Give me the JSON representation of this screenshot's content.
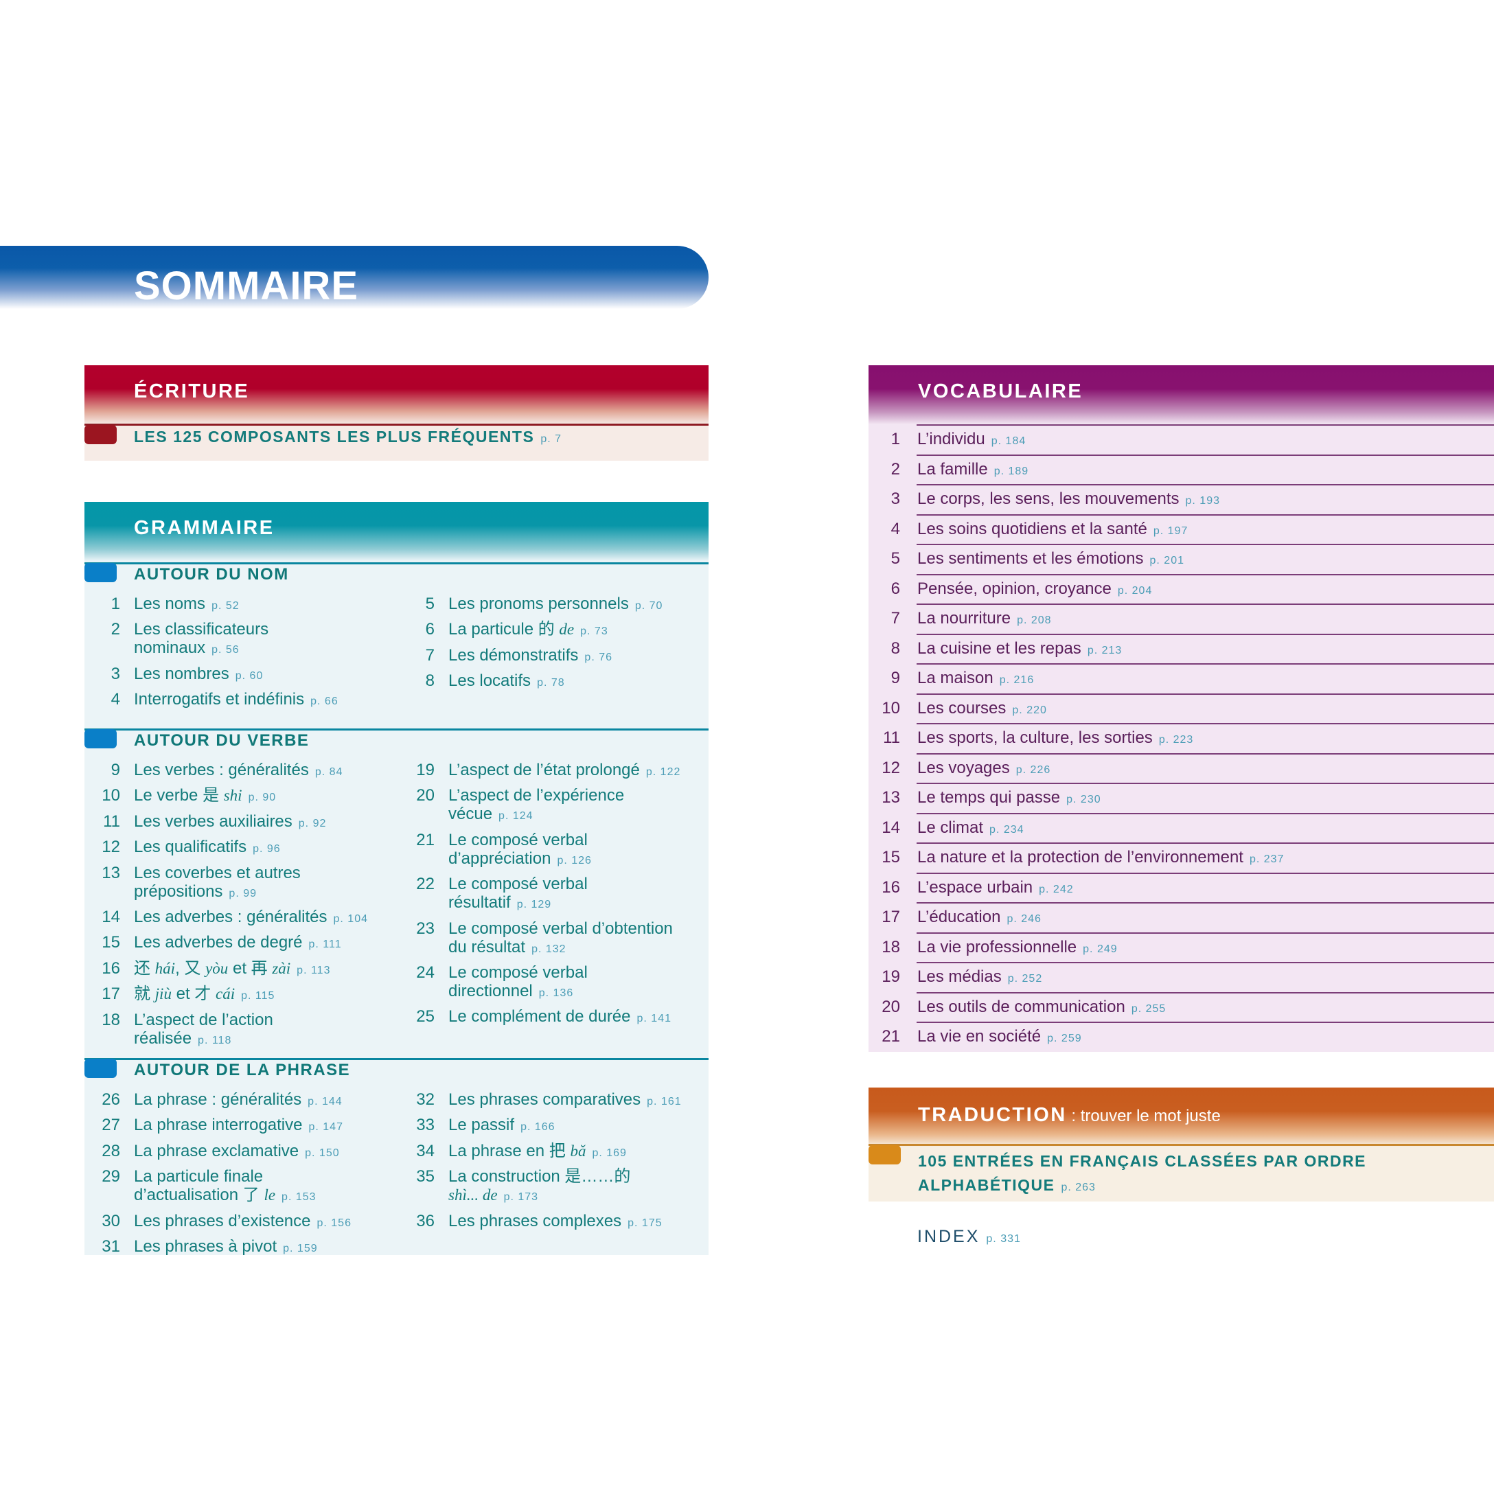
{
  "title": "SOMMAIRE",
  "colors": {
    "sommaire": "#0a58a8",
    "ecriture": "#b0002a",
    "grammaire": "#0497a8",
    "vocabulaire": "#87106f",
    "traduction": "#c85a1c",
    "text": "#137b7b",
    "page_ref": "#4c9db6"
  },
  "ecriture": {
    "title": "ÉCRITURE",
    "item": {
      "label": "LES 125 COMPOSANTS LES PLUS FRÉQUENTS",
      "page": "p. 7"
    }
  },
  "grammaire": {
    "title": "GRAMMAIRE",
    "sections": [
      {
        "title": "AUTOUR DU NOM",
        "left": [
          {
            "num": "1",
            "parts": [
              "Les noms"
            ],
            "page": "p. 52"
          },
          {
            "num": "2",
            "parts": [
              "Les classificateurs\nnominaux"
            ],
            "page": "p. 56"
          },
          {
            "num": "3",
            "parts": [
              "Les nombres"
            ],
            "page": "p. 60"
          },
          {
            "num": "4",
            "parts": [
              "Interrogatifs et indéfinis"
            ],
            "page": "p. 66"
          }
        ],
        "right": [
          {
            "num": "5",
            "parts": [
              "Les pronoms personnels"
            ],
            "page": "p. 70"
          },
          {
            "num": "6",
            "parts": [
              "La particule 的 ",
              {
                "i": "de"
              }
            ],
            "page": "p. 73"
          },
          {
            "num": "7",
            "parts": [
              "Les démonstratifs"
            ],
            "page": "p. 76"
          },
          {
            "num": "8",
            "parts": [
              "Les locatifs"
            ],
            "page": "p. 78"
          }
        ]
      },
      {
        "title": "AUTOUR DU VERBE",
        "left": [
          {
            "num": "9",
            "parts": [
              "Les verbes : généralités"
            ],
            "page": "p. 84"
          },
          {
            "num": "10",
            "parts": [
              "Le verbe 是 ",
              {
                "i": "shi"
              }
            ],
            "page": "p. 90"
          },
          {
            "num": "11",
            "parts": [
              "Les verbes auxiliaires"
            ],
            "page": "p. 92"
          },
          {
            "num": "12",
            "parts": [
              "Les qualificatifs"
            ],
            "page": "p. 96"
          },
          {
            "num": "13",
            "parts": [
              "Les coverbes et autres\nprépositions"
            ],
            "page": "p. 99"
          },
          {
            "num": "14",
            "parts": [
              "Les adverbes : généralités"
            ],
            "page": "p. 104"
          },
          {
            "num": "15",
            "parts": [
              "Les adverbes de degré"
            ],
            "page": "p. 111"
          },
          {
            "num": "16",
            "parts": [
              "还 ",
              {
                "i": "hái"
              },
              ", 又 ",
              {
                "i": "yòu"
              },
              " et 再 ",
              {
                "i": "zài"
              }
            ],
            "page": "p. 113"
          },
          {
            "num": "17",
            "parts": [
              "就 ",
              {
                "i": "jiù"
              },
              " et 才 ",
              {
                "i": "cái"
              }
            ],
            "page": "p. 115"
          },
          {
            "num": "18",
            "parts": [
              "L’aspect de l’action\nréalisée"
            ],
            "page": "p. 118"
          }
        ],
        "right": [
          {
            "num": "19",
            "parts": [
              "L’aspect de l’état prolongé"
            ],
            "page": "p. 122"
          },
          {
            "num": "20",
            "parts": [
              "L’aspect de l’expérience\nvécue"
            ],
            "page": "p. 124"
          },
          {
            "num": "21",
            "parts": [
              "Le composé verbal\nd’appréciation"
            ],
            "page": "p. 126"
          },
          {
            "num": "22",
            "parts": [
              "Le composé verbal\nrésultatif"
            ],
            "page": "p. 129"
          },
          {
            "num": "23",
            "parts": [
              "Le composé verbal d’obtention\ndu résultat"
            ],
            "page": "p. 132"
          },
          {
            "num": "24",
            "parts": [
              "Le composé verbal\ndirectionnel"
            ],
            "page": "p. 136"
          },
          {
            "num": "25",
            "parts": [
              "Le complément de durée"
            ],
            "page": "p. 141"
          }
        ]
      },
      {
        "title": "AUTOUR DE LA PHRASE",
        "left": [
          {
            "num": "26",
            "parts": [
              "La phrase : généralités"
            ],
            "page": "p. 144"
          },
          {
            "num": "27",
            "parts": [
              "La phrase interrogative"
            ],
            "page": "p. 147"
          },
          {
            "num": "28",
            "parts": [
              "La phrase exclamative"
            ],
            "page": "p. 150"
          },
          {
            "num": "29",
            "parts": [
              "La particule finale\nd’actualisation 了 ",
              {
                "i": "le"
              }
            ],
            "page": "p. 153"
          },
          {
            "num": "30",
            "parts": [
              "Les phrases d’existence"
            ],
            "page": "p. 156"
          },
          {
            "num": "31",
            "parts": [
              "Les phrases à pivot"
            ],
            "page": "p. 159"
          }
        ],
        "right": [
          {
            "num": "32",
            "parts": [
              "Les phrases comparatives"
            ],
            "page": "p. 161"
          },
          {
            "num": "33",
            "parts": [
              "Le passif"
            ],
            "page": "p. 166"
          },
          {
            "num": "34",
            "parts": [
              "La phrase en 把 ",
              {
                "i": "bǎ"
              }
            ],
            "page": "p. 169"
          },
          {
            "num": "35",
            "parts": [
              "La construction 是……的\n",
              {
                "i": "shì... de"
              }
            ],
            "page": "p. 173"
          },
          {
            "num": "36",
            "parts": [
              "Les phrases complexes"
            ],
            "page": "p. 175"
          }
        ]
      }
    ]
  },
  "vocabulaire": {
    "title": "VOCABULAIRE",
    "items": [
      {
        "num": "1",
        "title": "L’individu",
        "page": "p. 184"
      },
      {
        "num": "2",
        "title": "La famille",
        "page": "p. 189"
      },
      {
        "num": "3",
        "title": "Le corps, les sens, les mouvements",
        "page": "p. 193"
      },
      {
        "num": "4",
        "title": "Les soins quotidiens et la santé",
        "page": "p. 197"
      },
      {
        "num": "5",
        "title": "Les sentiments et les émotions",
        "page": "p. 201"
      },
      {
        "num": "6",
        "title": "Pensée, opinion, croyance",
        "page": "p. 204"
      },
      {
        "num": "7",
        "title": "La nourriture",
        "page": "p. 208"
      },
      {
        "num": "8",
        "title": "La cuisine et les repas",
        "page": "p. 213"
      },
      {
        "num": "9",
        "title": "La maison",
        "page": "p. 216"
      },
      {
        "num": "10",
        "title": "Les courses",
        "page": "p. 220"
      },
      {
        "num": "11",
        "title": "Les sports, la culture, les sorties",
        "page": "p. 223"
      },
      {
        "num": "12",
        "title": "Les voyages",
        "page": "p. 226"
      },
      {
        "num": "13",
        "title": "Le temps qui passe",
        "page": "p. 230"
      },
      {
        "num": "14",
        "title": "Le climat",
        "page": "p. 234"
      },
      {
        "num": "15",
        "title": "La nature et la protection de l’environnement",
        "page": "p. 237"
      },
      {
        "num": "16",
        "title": "L’espace urbain",
        "page": "p. 242"
      },
      {
        "num": "17",
        "title": "L’éducation",
        "page": "p. 246"
      },
      {
        "num": "18",
        "title": "La vie professionnelle",
        "page": "p. 249"
      },
      {
        "num": "19",
        "title": "Les médias",
        "page": "p. 252"
      },
      {
        "num": "20",
        "title": "Les outils de communication",
        "page": "p. 255"
      },
      {
        "num": "21",
        "title": "La vie en société",
        "page": "p. 259"
      }
    ]
  },
  "traduction": {
    "title": "TRADUCTION",
    "subtitle": " : trouver le mot juste",
    "item": {
      "line1": "105 ENTRÉES EN FRANÇAIS CLASSÉES PAR ORDRE",
      "line2": "ALPHABÉTIQUE",
      "page": "p. 263"
    }
  },
  "index": {
    "label": "INDEX",
    "page": "p. 331"
  }
}
